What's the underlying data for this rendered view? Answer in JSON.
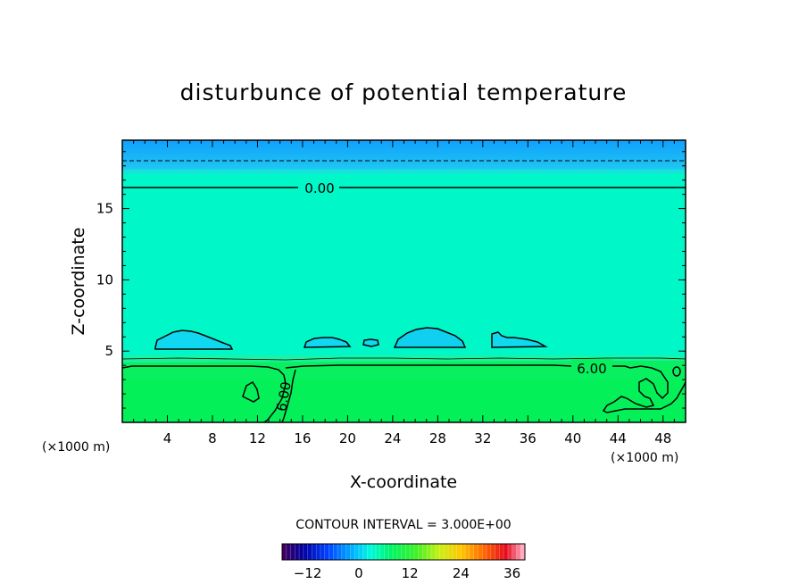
{
  "chart_data": {
    "type": "contour",
    "title": "disturbunce of potential temperature",
    "xlabel": "X-coordinate",
    "ylabel": "Z-coordinate",
    "x_unit": "(×1000 m)",
    "xlim": [
      0,
      50
    ],
    "ylim": [
      0,
      19.8
    ],
    "x_ticks": [
      4,
      8,
      12,
      16,
      20,
      24,
      28,
      32,
      36,
      40,
      44,
      48
    ],
    "y_ticks": [
      5,
      10,
      15
    ],
    "contour_interval_text": "CONTOUR INTERVAL = 3.000E+00",
    "contour_labels": [
      "0.00",
      "6.00",
      "6.00"
    ],
    "colorbar": {
      "ticks": [
        -12,
        0,
        12,
        24,
        36
      ],
      "range": [
        -18,
        39
      ]
    },
    "regions": [
      {
        "level": "negative",
        "z_from": 18.5,
        "z_to": 19.8,
        "color": "#1fa8ff"
      },
      {
        "level": "near zero",
        "z_from": 4.6,
        "z_to": 18.5,
        "color": "#00f8c8"
      },
      {
        "level": "~6",
        "z_from": 0,
        "z_to": 4.6,
        "color": "#08f060"
      }
    ]
  }
}
